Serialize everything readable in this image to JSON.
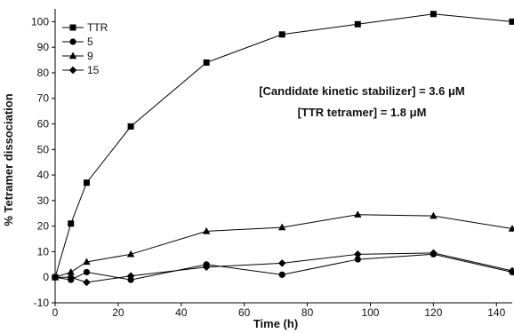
{
  "chart_data": {
    "type": "line",
    "xlabel": "Time (h)",
    "ylabel": "% Tetramer dissociation",
    "xlim": [
      0,
      145
    ],
    "ylim": [
      -10,
      105
    ],
    "x_ticks": [
      0,
      20,
      40,
      60,
      80,
      100,
      120,
      140
    ],
    "y_ticks": [
      -10,
      0,
      10,
      20,
      30,
      40,
      50,
      60,
      70,
      80,
      90,
      100
    ],
    "grid": false,
    "legend_position": "top-left",
    "annotations": [
      {
        "text": "[Candidate kinetic stabilizer] = 3.6 μM"
      },
      {
        "text": "[TTR tetramer] = 1.8 μM"
      }
    ],
    "series": [
      {
        "name": "TTR",
        "marker": "square",
        "x": [
          0,
          5,
          10,
          24,
          48,
          72,
          96,
          120,
          145
        ],
        "y": [
          0,
          21,
          37,
          59,
          84,
          95,
          99,
          103,
          100
        ]
      },
      {
        "name": "5",
        "marker": "circle",
        "x": [
          0,
          5,
          10,
          24,
          48,
          72,
          96,
          120,
          145
        ],
        "y": [
          0,
          -1,
          2,
          -1,
          5,
          1,
          7,
          9,
          2
        ]
      },
      {
        "name": "9",
        "marker": "triangle",
        "x": [
          0,
          5,
          10,
          24,
          48,
          72,
          96,
          120,
          145
        ],
        "y": [
          0,
          2,
          6,
          9,
          18,
          19.5,
          24.5,
          24,
          19
        ]
      },
      {
        "name": "15",
        "marker": "diamond",
        "x": [
          0,
          5,
          10,
          24,
          48,
          72,
          96,
          120,
          145
        ],
        "y": [
          0,
          0,
          -2,
          0.5,
          4,
          5.5,
          9,
          9.5,
          2.5
        ]
      }
    ]
  }
}
